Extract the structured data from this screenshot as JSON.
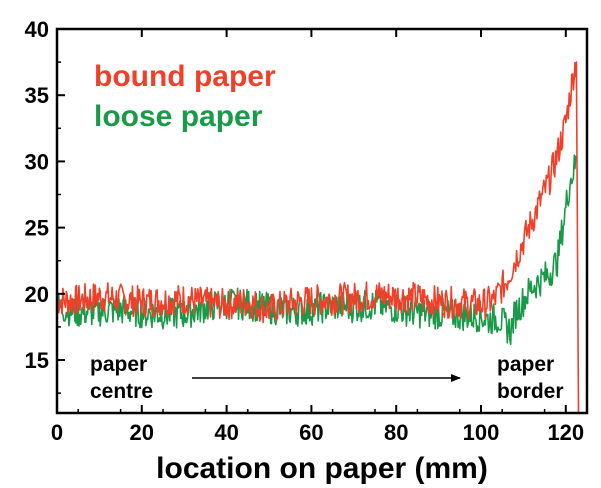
{
  "chart_data": {
    "type": "line",
    "xlabel": "location on paper (mm)",
    "ylabel": "",
    "xlim": [
      0,
      125
    ],
    "ylim": [
      11,
      40
    ],
    "x_ticks": [
      0,
      20,
      40,
      60,
      80,
      100,
      120
    ],
    "y_ticks": [
      15,
      20,
      25,
      30,
      35,
      40
    ],
    "grid": false,
    "legend_placement": "top-left",
    "series": [
      {
        "name": "bound paper",
        "color": "#f0402a",
        "x": [
          0,
          5,
          10,
          15,
          20,
          25,
          30,
          35,
          40,
          45,
          50,
          55,
          60,
          65,
          70,
          75,
          80,
          85,
          90,
          95,
          100,
          103,
          106,
          108,
          110,
          112,
          114,
          116,
          118,
          120,
          121,
          122,
          122.5,
          123
        ],
        "y": [
          19.5,
          19.5,
          19.8,
          19.6,
          19.4,
          19.5,
          19.6,
          19.3,
          19.2,
          19.4,
          18.8,
          19.3,
          19.5,
          19.6,
          19.7,
          19.9,
          19.8,
          19.7,
          19.4,
          19.3,
          19.2,
          19.5,
          21.0,
          22.5,
          24.0,
          25.5,
          27.0,
          28.5,
          30.5,
          33.0,
          35.0,
          37.0,
          37.5,
          11.0
        ]
      },
      {
        "name": "loose paper",
        "color": "#1a9a48",
        "x": [
          0,
          5,
          10,
          15,
          20,
          25,
          30,
          35,
          40,
          45,
          50,
          55,
          60,
          65,
          70,
          75,
          80,
          85,
          90,
          95,
          100,
          102,
          104,
          106,
          107,
          108,
          110,
          112,
          114,
          116,
          118,
          119,
          120,
          121,
          122,
          122.5
        ],
        "y": [
          19.0,
          18.6,
          18.7,
          18.8,
          18.6,
          18.5,
          18.5,
          19.0,
          19.3,
          19.2,
          18.9,
          18.7,
          18.8,
          19.1,
          19.0,
          19.2,
          18.9,
          18.6,
          18.5,
          18.4,
          18.3,
          18.0,
          18.2,
          17.5,
          17.2,
          18.5,
          19.5,
          20.5,
          21.0,
          21.5,
          22.5,
          24.5,
          26.5,
          28.5,
          29.5,
          30.0
        ]
      }
    ],
    "annotations": {
      "left_line1": "paper",
      "left_line2": "centre",
      "right_line1": "paper",
      "right_line2": "border"
    }
  }
}
